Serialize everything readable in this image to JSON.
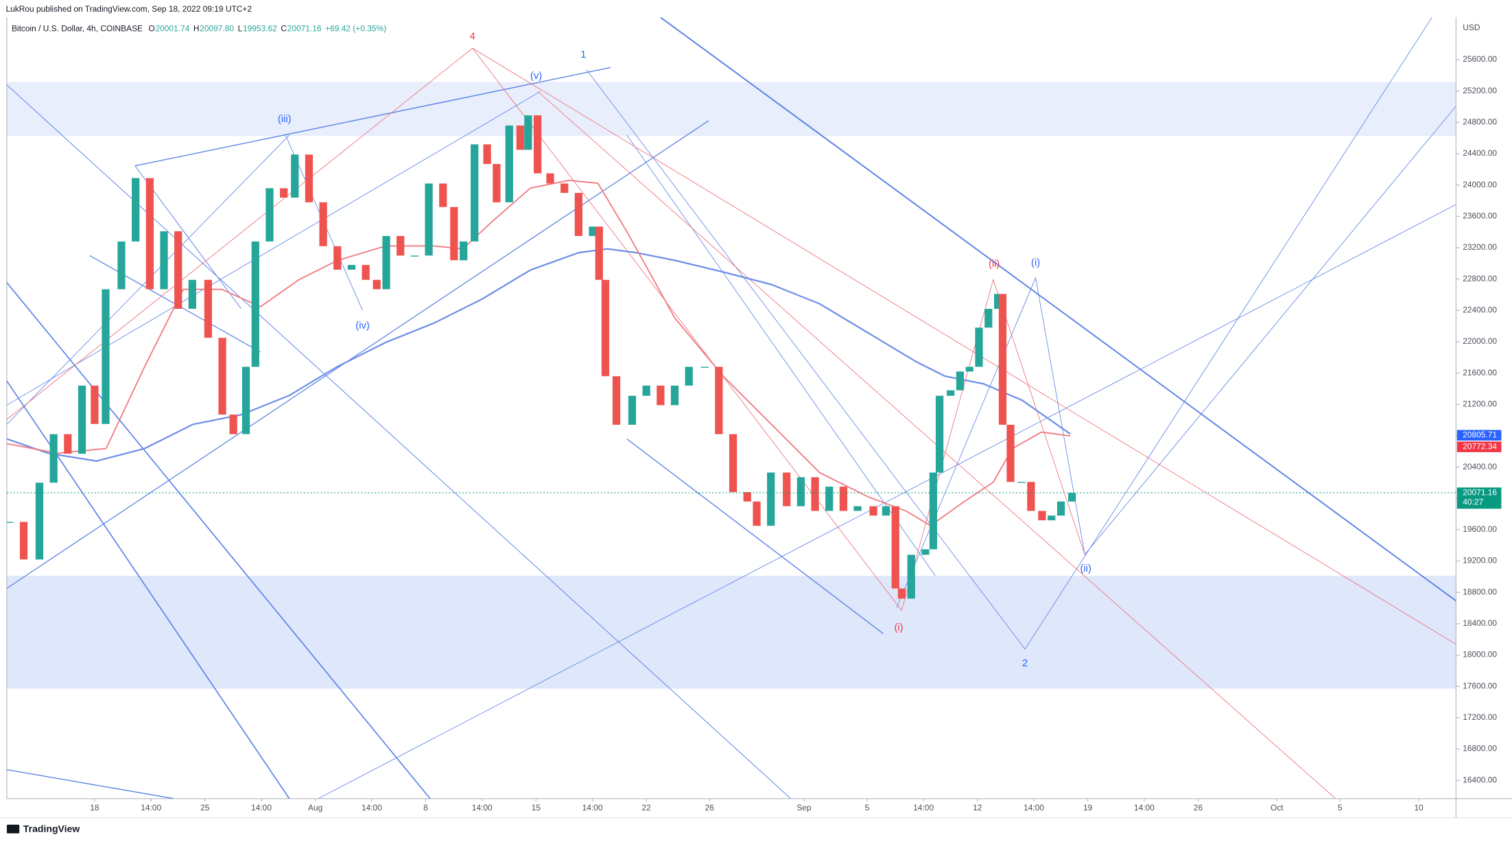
{
  "header": {
    "publisher": "LukRou published on TradingView.com, Sep 18, 2022 09:19 UTC+2",
    "brand": "TradingView"
  },
  "chart_data": {
    "type": "candlestick",
    "title": "Bitcoin / U.S. Dollar, 4h, COINBASE",
    "ohlc": [
      "O",
      "20001.74",
      "H",
      "20097.80",
      "L",
      "19953.62",
      "C",
      "20071.16",
      "+69.42 (+0.35%)"
    ],
    "up_color": "#26a69a",
    "down_color": "#ef5350",
    "x": [
      -5.4,
      -4.5,
      -3.5,
      -2.6,
      -1.7,
      -0.8,
      0,
      0.7,
      1.7,
      2.6,
      3.5,
      4.4,
      5.3,
      6.2,
      7.2,
      8.1,
      8.8,
      9.6,
      10.2,
      11.1,
      12.0,
      12.7,
      13.6,
      14.5,
      15.4,
      16.3,
      17.2,
      17.9,
      18.5,
      19.4,
      20.3,
      21.2,
      22.1,
      22.8,
      23.4,
      24.1,
      24.9,
      25.5,
      26.3,
      27.0,
      27.5,
      28.1,
      28.9,
      29.8,
      30.7,
      31.6,
      32.0,
      32.4,
      33.1,
      34.1,
      35.0,
      35.9,
      36.8,
      37.7,
      38.7,
      39.6,
      40.5,
      41.4,
      42.0,
      42.9,
      43.9,
      44.8,
      45.7,
      46.6,
      47.5,
      48.4,
      49.4,
      50.2,
      50.8,
      51.2,
      51.8,
      52.7,
      53.2,
      53.6,
      54.3,
      54.9,
      55.5,
      56.1,
      56.7,
      57.3,
      57.6,
      58.1,
      58.8,
      59.4,
      60.1,
      60.7,
      61.3,
      62.0
    ],
    "values": [
      19700,
      19220,
      20200,
      20820,
      20570,
      21440,
      20950,
      22670,
      23280,
      24090,
      22670,
      23410,
      22420,
      22790,
      22050,
      21070,
      20820,
      21680,
      23280,
      23960,
      23840,
      24390,
      23780,
      23220,
      22920,
      22980,
      22790,
      22670,
      23350,
      23100,
      23100,
      24020,
      23720,
      23040,
      23280,
      24520,
      24270,
      23780,
      24760,
      24450,
      24890,
      24150,
      24020,
      23900,
      23350,
      23470,
      22790,
      21560,
      20940,
      21310,
      21440,
      21190,
      21440,
      21680,
      21680,
      20820,
      20080,
      19960,
      19650,
      20330,
      19900,
      20270,
      19840,
      20150,
      19840,
      19900,
      19780,
      19900,
      18850,
      18720,
      19280,
      19350,
      20330,
      21310,
      21380,
      21620,
      21680,
      22180,
      22420,
      22610,
      20940,
      20210,
      20210,
      19840,
      19720,
      19780,
      19960,
      20070
    ],
    "xlim": [
      -5.57,
      86.36
    ],
    "xticks": [
      {
        "value": 0,
        "label": "18"
      },
      {
        "value": 3.58,
        "label": "14:00"
      },
      {
        "value": 7,
        "label": "25"
      },
      {
        "value": 10.58,
        "label": "14:00"
      },
      {
        "value": 14,
        "label": "Aug"
      },
      {
        "value": 17.58,
        "label": "14:00"
      },
      {
        "value": 21,
        "label": "8"
      },
      {
        "value": 24.58,
        "label": "14:00"
      },
      {
        "value": 28,
        "label": "15"
      },
      {
        "value": 31.58,
        "label": "14:00"
      },
      {
        "value": 35,
        "label": "22"
      },
      {
        "value": 39,
        "label": "26"
      },
      {
        "value": 45,
        "label": "Sep"
      },
      {
        "value": 49,
        "label": "5"
      },
      {
        "value": 52.58,
        "label": "14:00"
      },
      {
        "value": 56,
        "label": "12"
      },
      {
        "value": 59.58,
        "label": "14:00"
      },
      {
        "value": 63,
        "label": "19"
      },
      {
        "value": 66.58,
        "label": "14:00"
      },
      {
        "value": 70,
        "label": "26"
      },
      {
        "value": 75,
        "label": "Oct"
      },
      {
        "value": 79,
        "label": "5"
      },
      {
        "value": 84,
        "label": "10"
      }
    ],
    "ylim": [
      16167,
      26363
    ],
    "y_unit": "USD",
    "yticks": [
      {
        "value": 16400,
        "label": "16400.00"
      },
      {
        "value": 16800,
        "label": "16800.00"
      },
      {
        "value": 17200,
        "label": "17200.00"
      },
      {
        "value": 17600,
        "label": "17600.00"
      },
      {
        "value": 18000,
        "label": "18000.00"
      },
      {
        "value": 18400,
        "label": "18400.00"
      },
      {
        "value": 18800,
        "label": "18800.00"
      },
      {
        "value": 19200,
        "label": "19200.00"
      },
      {
        "value": 19600,
        "label": "19600.00"
      },
      {
        "value": 20000,
        "label": "20000.00"
      },
      {
        "value": 20400,
        "label": "20400.00"
      },
      {
        "value": 20800,
        "label": "20800.00"
      },
      {
        "value": 21200,
        "label": "21200.00"
      },
      {
        "value": 21600,
        "label": "21600.00"
      },
      {
        "value": 22000,
        "label": "22000.00"
      },
      {
        "value": 22400,
        "label": "22400.00"
      },
      {
        "value": 22800,
        "label": "22800.00"
      },
      {
        "value": 23200,
        "label": "23200.00"
      },
      {
        "value": 23600,
        "label": "23600.00"
      },
      {
        "value": 24000,
        "label": "24000.00"
      },
      {
        "value": 24400,
        "label": "24400.00"
      },
      {
        "value": 24800,
        "label": "24800.00"
      },
      {
        "value": 25200,
        "label": "25200.00"
      },
      {
        "value": 25600,
        "label": "25600.00"
      }
    ],
    "price_tags": [
      {
        "value": 20805.71,
        "color": "#2962ff"
      },
      {
        "value": 20772.34,
        "color": "#f23645"
      },
      {
        "value": 20071.16,
        "color": "#089981"
      }
    ],
    "countdown": "40:27",
    "annotations": [
      "4",
      "1",
      "(v)",
      "(iii)",
      "(iv)",
      "(ii)",
      "(i)",
      "(i)",
      "2",
      "(ii)"
    ]
  }
}
